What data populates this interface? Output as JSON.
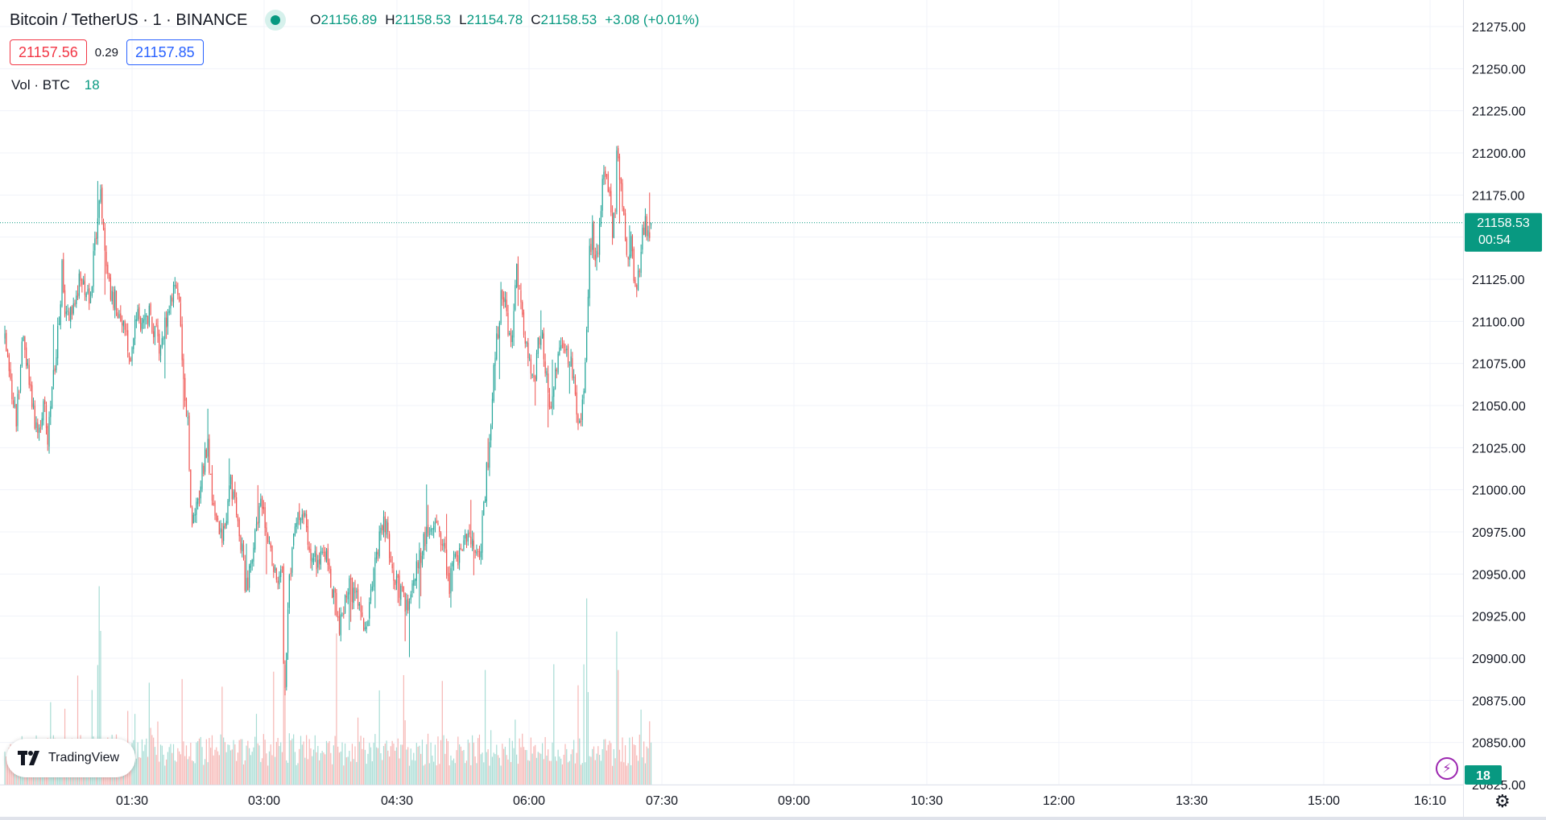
{
  "header": {
    "symbol_title": "Bitcoin / TetherUS · 1 · BINANCE",
    "ohlc": {
      "o_label": "O",
      "o": "21156.89",
      "h_label": "H",
      "h": "21158.53",
      "l_label": "L",
      "l": "21154.78",
      "c_label": "C",
      "c": "21158.53",
      "change": "+3.08 (+0.01%)"
    }
  },
  "quote": {
    "bid": "21157.56",
    "spread": "0.29",
    "ask": "21157.85"
  },
  "volume_legend": {
    "label": "Vol · BTC",
    "value": "18"
  },
  "last_price": {
    "price": "21158.53",
    "countdown": "00:54"
  },
  "volume_badge": "18",
  "branding": {
    "logo_text": "TradingView"
  },
  "icons": {
    "status": "market-open-dot-icon",
    "logo": "tradingview-logo-icon",
    "bolt": "lightning-bolt-icon",
    "settings": "gear-icon"
  },
  "colors": {
    "up": "#26a69a",
    "down": "#ef5350",
    "volume_up": "#a7dcd4",
    "volume_down": "#f6b6b4",
    "grid": "#f0f3fa",
    "price_label_bg": "#089981"
  },
  "chart_data": {
    "type": "candlestick",
    "xlabel": "",
    "ylabel": "",
    "x_ticks": [
      "01:30",
      "03:00",
      "04:30",
      "06:00",
      "07:30",
      "09:00",
      "10:30",
      "12:00",
      "13:30",
      "15:00",
      "16:10"
    ],
    "y_ticks": [
      "20825.00",
      "20850.00",
      "20875.00",
      "20900.00",
      "20925.00",
      "20950.00",
      "20975.00",
      "21000.00",
      "21025.00",
      "21050.00",
      "21075.00",
      "21100.00",
      "21125.00",
      "21150.00",
      "21175.00",
      "21200.00",
      "21225.00",
      "21250.00",
      "21275.00"
    ],
    "ylim": [
      20825,
      21285
    ],
    "grid": true,
    "interval": "1 minute",
    "price_anchors": [
      [
        0,
        21095
      ],
      [
        5,
        21060
      ],
      [
        8,
        21040
      ],
      [
        12,
        21090
      ],
      [
        16,
        21070
      ],
      [
        20,
        21045
      ],
      [
        24,
        21035
      ],
      [
        28,
        21050
      ],
      [
        30,
        21030
      ],
      [
        33,
        21060
      ],
      [
        36,
        21080
      ],
      [
        39,
        21115
      ],
      [
        40,
        21140
      ],
      [
        42,
        21105
      ],
      [
        48,
        21110
      ],
      [
        53,
        21125
      ],
      [
        57,
        21120
      ],
      [
        60,
        21110
      ],
      [
        62,
        21140
      ],
      [
        65,
        21160
      ],
      [
        67,
        21185
      ],
      [
        68,
        21160
      ],
      [
        70,
        21145
      ],
      [
        73,
        21120
      ],
      [
        78,
        21110
      ],
      [
        83,
        21100
      ],
      [
        88,
        21080
      ],
      [
        91,
        21105
      ],
      [
        95,
        21100
      ],
      [
        100,
        21105
      ],
      [
        105,
        21095
      ],
      [
        109,
        21085
      ],
      [
        113,
        21100
      ],
      [
        118,
        21120
      ],
      [
        122,
        21110
      ],
      [
        124,
        21075
      ],
      [
        126,
        21050
      ],
      [
        128,
        21040
      ],
      [
        130,
        20990
      ],
      [
        132,
        20980
      ],
      [
        136,
        21000
      ],
      [
        140,
        21020
      ],
      [
        142,
        21025
      ],
      [
        145,
        21000
      ],
      [
        148,
        20985
      ],
      [
        152,
        20975
      ],
      [
        156,
        20990
      ],
      [
        158,
        21005
      ],
      [
        162,
        20985
      ],
      [
        166,
        20965
      ],
      [
        168,
        20945
      ],
      [
        170,
        20940
      ],
      [
        173,
        20965
      ],
      [
        176,
        20980
      ],
      [
        179,
        20995
      ],
      [
        182,
        20975
      ],
      [
        185,
        20970
      ],
      [
        188,
        20955
      ],
      [
        191,
        20940
      ],
      [
        194,
        20950
      ],
      [
        195,
        20900
      ],
      [
        196,
        20880
      ],
      [
        198,
        20930
      ],
      [
        200,
        20955
      ],
      [
        203,
        20975
      ],
      [
        206,
        20985
      ],
      [
        210,
        20980
      ],
      [
        214,
        20965
      ],
      [
        218,
        20955
      ],
      [
        222,
        20965
      ],
      [
        225,
        20960
      ],
      [
        228,
        20945
      ],
      [
        231,
        20935
      ],
      [
        234,
        20915
      ],
      [
        237,
        20930
      ],
      [
        240,
        20945
      ],
      [
        243,
        20940
      ],
      [
        247,
        20935
      ],
      [
        250,
        20925
      ],
      [
        253,
        20915
      ],
      [
        256,
        20935
      ],
      [
        259,
        20955
      ],
      [
        262,
        20975
      ],
      [
        265,
        20985
      ],
      [
        268,
        20970
      ],
      [
        271,
        20950
      ],
      [
        275,
        20945
      ],
      [
        279,
        20935
      ],
      [
        282,
        20930
      ],
      [
        285,
        20945
      ],
      [
        288,
        20955
      ],
      [
        292,
        20965
      ],
      [
        296,
        20975
      ],
      [
        300,
        20985
      ],
      [
        304,
        20970
      ],
      [
        308,
        20960
      ],
      [
        311,
        20945
      ],
      [
        314,
        20955
      ],
      [
        318,
        20960
      ],
      [
        322,
        20975
      ],
      [
        326,
        20970
      ],
      [
        330,
        20960
      ],
      [
        333,
        20970
      ],
      [
        336,
        21000
      ],
      [
        339,
        21030
      ],
      [
        342,
        21070
      ],
      [
        345,
        21095
      ],
      [
        348,
        21120
      ],
      [
        351,
        21105
      ],
      [
        354,
        21085
      ],
      [
        357,
        21115
      ],
      [
        358,
        21135
      ],
      [
        361,
        21105
      ],
      [
        364,
        21090
      ],
      [
        367,
        21080
      ],
      [
        370,
        21060
      ],
      [
        373,
        21085
      ],
      [
        376,
        21090
      ],
      [
        379,
        21065
      ],
      [
        382,
        21050
      ],
      [
        385,
        21065
      ],
      [
        388,
        21080
      ],
      [
        391,
        21090
      ],
      [
        394,
        21080
      ],
      [
        397,
        21070
      ],
      [
        399,
        21060
      ],
      [
        401,
        21040
      ],
      [
        403,
        21035
      ],
      [
        405,
        21060
      ],
      [
        407,
        21100
      ],
      [
        409,
        21140
      ],
      [
        411,
        21155
      ],
      [
        413,
        21130
      ],
      [
        415,
        21145
      ],
      [
        417,
        21165
      ],
      [
        419,
        21195
      ],
      [
        421,
        21185
      ],
      [
        423,
        21170
      ],
      [
        425,
        21150
      ],
      [
        427,
        21165
      ],
      [
        428,
        21200
      ],
      [
        430,
        21190
      ],
      [
        432,
        21165
      ],
      [
        434,
        21150
      ],
      [
        436,
        21135
      ],
      [
        438,
        21145
      ],
      [
        440,
        21130
      ],
      [
        442,
        21120
      ],
      [
        444,
        21135
      ],
      [
        446,
        21150
      ],
      [
        448,
        21160
      ],
      [
        450,
        21155
      ],
      [
        452,
        21158
      ]
    ],
    "volume_peak_btc": 90
  }
}
